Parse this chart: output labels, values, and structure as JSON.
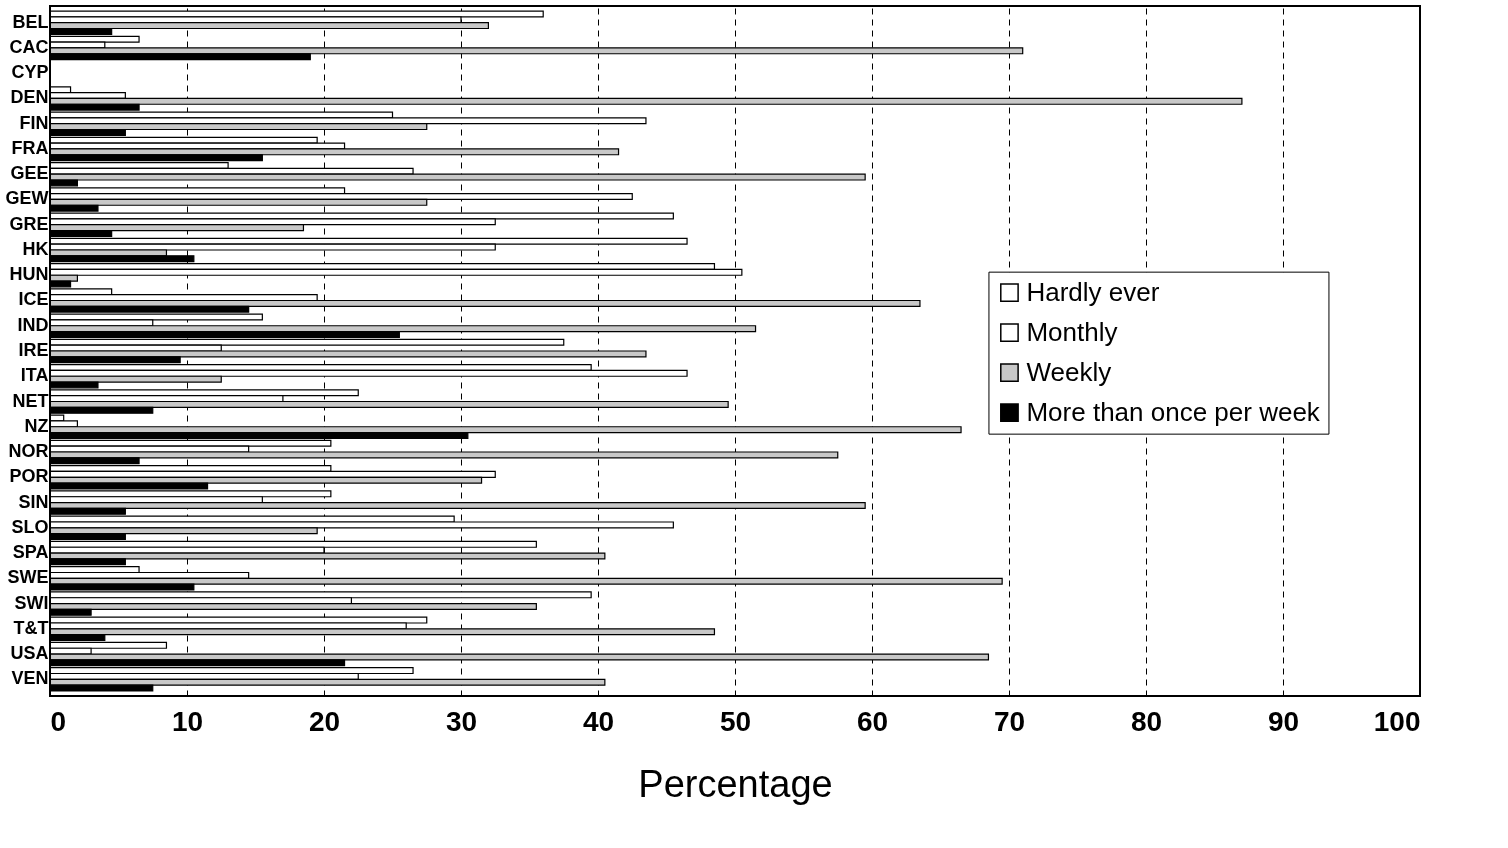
{
  "chart_data": {
    "type": "bar",
    "orientation": "horizontal",
    "xlabel": "Percentage",
    "categories": [
      "BEL",
      "CAC",
      "CYP",
      "DEN",
      "FIN",
      "FRA",
      "GEE",
      "GEW",
      "GRE",
      "HK",
      "HUN",
      "ICE",
      "IND",
      "IRE",
      "ITA",
      "NET",
      "NZ",
      "NOR",
      "POR",
      "SIN",
      "SLO",
      "SPA",
      "SWE",
      "SWI",
      "T&T",
      "USA",
      "VEN"
    ],
    "series": [
      {
        "name": "Hardly ever",
        "color": "#ffffff",
        "values": [
          36,
          6.5,
          null,
          1.5,
          25,
          19.5,
          13,
          21.5,
          45.5,
          46.5,
          48.5,
          4.5,
          15.5,
          37.5,
          39.5,
          22.5,
          1,
          20.5,
          20.5,
          20.5,
          29.5,
          35.5,
          6.5,
          39.5,
          27.5,
          8.5,
          26.5
        ]
      },
      {
        "name": "Monthly",
        "color": "#ffffff",
        "values": [
          30,
          4,
          null,
          5.5,
          43.5,
          21.5,
          26.5,
          42.5,
          32.5,
          32.5,
          50.5,
          19.5,
          7.5,
          12.5,
          46.5,
          17,
          2,
          14.5,
          32.5,
          15.5,
          45.5,
          20,
          14.5,
          22,
          26,
          3,
          22.5
        ]
      },
      {
        "name": "Weekly",
        "color": "#c8c8c8",
        "values": [
          32,
          71,
          null,
          87,
          27.5,
          41.5,
          59.5,
          27.5,
          18.5,
          8.5,
          2,
          63.5,
          51.5,
          43.5,
          12.5,
          49.5,
          66.5,
          57.5,
          31.5,
          59.5,
          19.5,
          40.5,
          69.5,
          35.5,
          48.5,
          68.5,
          40.5
        ]
      },
      {
        "name": "More than once per week",
        "color": "#000000",
        "values": [
          4.5,
          19,
          null,
          6.5,
          5.5,
          15.5,
          2,
          3.5,
          4.5,
          10.5,
          1.5,
          14.5,
          25.5,
          9.5,
          3.5,
          7.5,
          30.5,
          6.5,
          11.5,
          5.5,
          5.5,
          5.5,
          10.5,
          3,
          4,
          21.5,
          7.5
        ]
      }
    ],
    "xlim": [
      0,
      100
    ],
    "xticks": [
      0,
      10,
      20,
      30,
      40,
      50,
      60,
      70,
      80,
      90,
      100
    ],
    "grid": "x",
    "legend": "right"
  }
}
